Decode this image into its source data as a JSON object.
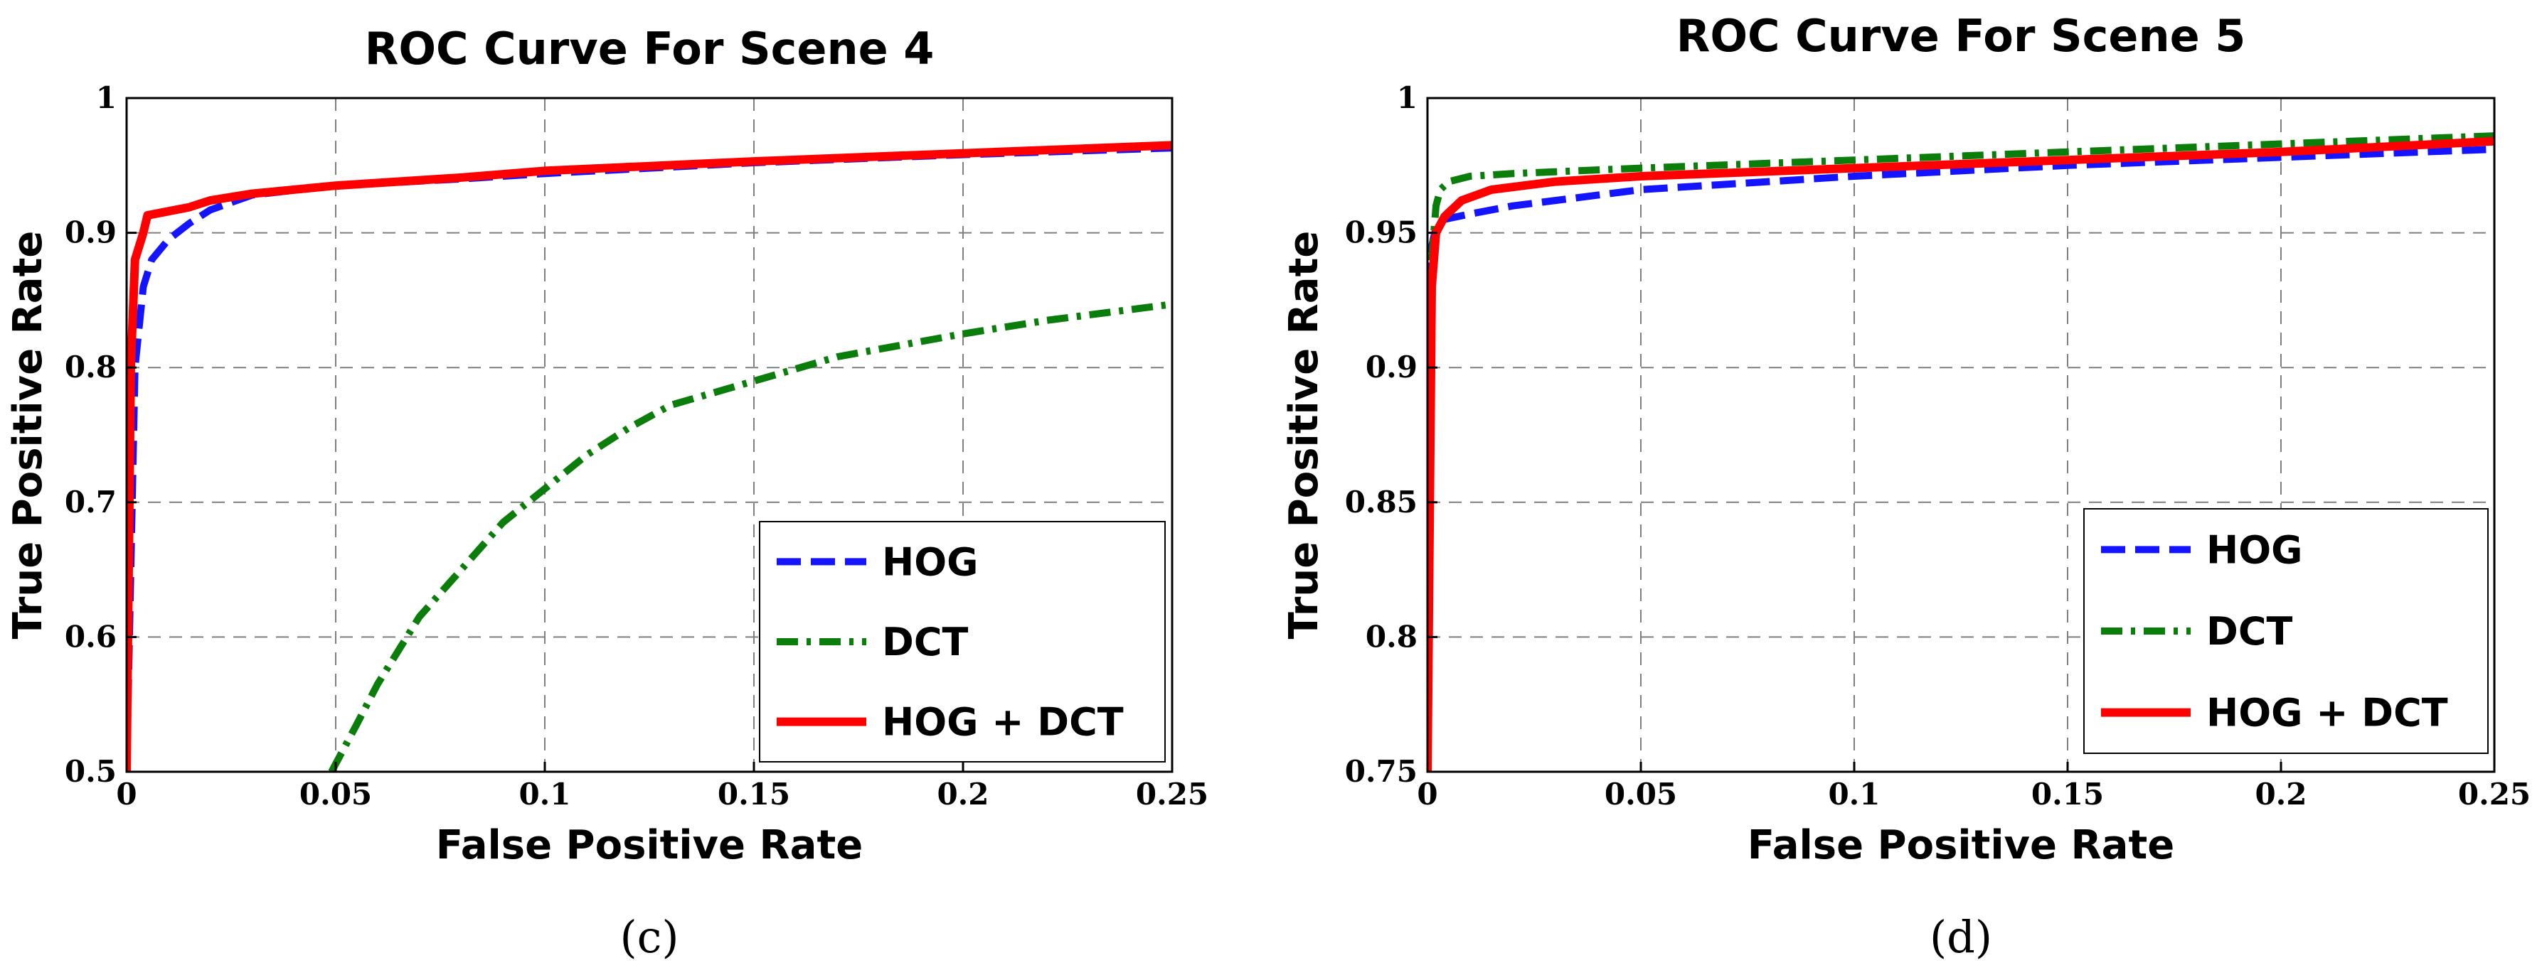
{
  "chart_data": [
    {
      "type": "line",
      "title": "ROC Curve For Scene 4",
      "xlabel": "False Positive Rate",
      "ylabel": "True Positive Rate",
      "caption": "(c)",
      "xlim": [
        0,
        0.25
      ],
      "ylim": [
        0.5,
        1
      ],
      "xticks": [
        0,
        0.05,
        0.1,
        0.15,
        0.2,
        0.25
      ],
      "yticks": [
        0.5,
        0.6,
        0.7,
        0.8,
        0.9,
        1
      ],
      "xtick_labels": [
        "0",
        "0.05",
        "0.1",
        "0.15",
        "0.2",
        "0.25"
      ],
      "ytick_labels": [
        "0.5",
        "0.6",
        "0.7",
        "0.8",
        "0.9",
        "1"
      ],
      "grid": true,
      "legend_position": "bottom-right",
      "series": [
        {
          "name": "HOG",
          "color": "#1414ff",
          "style": "dashed",
          "x": [
            0,
            0.001,
            0.002,
            0.004,
            0.006,
            0.01,
            0.015,
            0.02,
            0.03,
            0.05,
            0.08,
            0.1,
            0.15,
            0.2,
            0.25
          ],
          "y": [
            0.5,
            0.65,
            0.8,
            0.86,
            0.88,
            0.895,
            0.907,
            0.917,
            0.928,
            0.935,
            0.94,
            0.944,
            0.952,
            0.958,
            0.963
          ]
        },
        {
          "name": "DCT",
          "color": "#0a7d0a",
          "style": "dashdot",
          "x": [
            0.049,
            0.055,
            0.06,
            0.065,
            0.07,
            0.08,
            0.09,
            0.1,
            0.11,
            0.12,
            0.13,
            0.15,
            0.17,
            0.2,
            0.22,
            0.25
          ],
          "y": [
            0.5,
            0.535,
            0.565,
            0.59,
            0.615,
            0.65,
            0.685,
            0.71,
            0.735,
            0.755,
            0.772,
            0.79,
            0.808,
            0.825,
            0.835,
            0.847
          ]
        },
        {
          "name": "HOG + DCT",
          "color": "#ff0000",
          "style": "solid",
          "x": [
            0,
            0.001,
            0.002,
            0.004,
            0.005,
            0.01,
            0.015,
            0.02,
            0.03,
            0.05,
            0.08,
            0.1,
            0.15,
            0.2,
            0.25
          ],
          "y": [
            0.5,
            0.8,
            0.88,
            0.9,
            0.913,
            0.916,
            0.919,
            0.924,
            0.929,
            0.935,
            0.941,
            0.946,
            0.953,
            0.959,
            0.965
          ]
        }
      ]
    },
    {
      "type": "line",
      "title": "ROC Curve For Scene 5",
      "xlabel": "False Positive Rate",
      "ylabel": "True Positive Rate",
      "caption": "(d)",
      "xlim": [
        0,
        0.25
      ],
      "ylim": [
        0.75,
        1
      ],
      "xticks": [
        0,
        0.05,
        0.1,
        0.15,
        0.2,
        0.25
      ],
      "yticks": [
        0.75,
        0.8,
        0.85,
        0.9,
        0.95,
        1
      ],
      "xtick_labels": [
        "0",
        "0.05",
        "0.1",
        "0.15",
        "0.2",
        "0.25"
      ],
      "ytick_labels": [
        "0.75",
        "0.8",
        "0.85",
        "0.9",
        "0.95",
        "1"
      ],
      "grid": true,
      "legend_position": "bottom-right",
      "series": [
        {
          "name": "HOG",
          "color": "#1414ff",
          "style": "dashed",
          "x": [
            0,
            0.001,
            0.002,
            0.004,
            0.01,
            0.02,
            0.05,
            0.1,
            0.15,
            0.2,
            0.25
          ],
          "y": [
            0.93,
            0.945,
            0.952,
            0.955,
            0.957,
            0.96,
            0.966,
            0.971,
            0.975,
            0.978,
            0.981
          ]
        },
        {
          "name": "DCT",
          "color": "#0a7d0a",
          "style": "dashdot",
          "x": [
            0,
            0.001,
            0.002,
            0.003,
            0.005,
            0.01,
            0.02,
            0.05,
            0.1,
            0.15,
            0.2,
            0.25
          ],
          "y": [
            0.75,
            0.94,
            0.96,
            0.966,
            0.969,
            0.971,
            0.972,
            0.974,
            0.977,
            0.98,
            0.983,
            0.986
          ]
        },
        {
          "name": "HOG + DCT",
          "color": "#ff0000",
          "style": "solid",
          "x": [
            0,
            0.001,
            0.002,
            0.004,
            0.008,
            0.015,
            0.03,
            0.05,
            0.1,
            0.15,
            0.2,
            0.25
          ],
          "y": [
            0.75,
            0.93,
            0.95,
            0.956,
            0.962,
            0.966,
            0.969,
            0.971,
            0.974,
            0.977,
            0.98,
            0.984
          ]
        }
      ]
    }
  ]
}
